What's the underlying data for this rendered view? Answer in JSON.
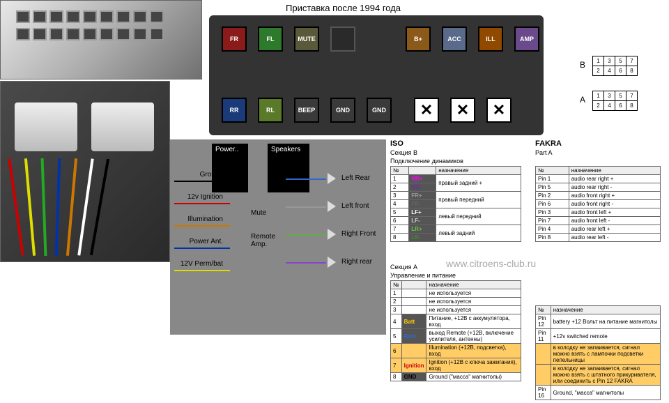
{
  "title_top": "Приставка после 1994 года",
  "photo_placeholders": {
    "top_left": "connector-photo-top",
    "bottom_left": "connector-photo-bottom"
  },
  "main_connector": {
    "background": "#3a3a3a",
    "top_row": [
      {
        "label": "FR",
        "bg": "#8b1a1a"
      },
      {
        "label": "FL",
        "bg": "#2d7a2d"
      },
      {
        "label": "MUTE",
        "bg": "#5a5a3a"
      },
      {
        "label": "",
        "bg": "#2a2a2a",
        "blank": true
      },
      {
        "label": "B+",
        "bg": "#8b5a1a"
      },
      {
        "label": "ACC",
        "bg": "#5a6a8a"
      },
      {
        "label": "ILL",
        "bg": "#904a00"
      },
      {
        "label": "AMP",
        "bg": "#6a4a8a"
      }
    ],
    "bottom_row": [
      {
        "label": "RR",
        "bg": "#1a3a7a"
      },
      {
        "label": "RL",
        "bg": "#5a7a2a"
      },
      {
        "label": "BEEP",
        "bg": "#3a3a3a"
      },
      {
        "label": "GND",
        "bg": "#3a3a3a"
      },
      {
        "label": "GND",
        "bg": "#3a3a3a"
      },
      {
        "label": "✕",
        "bg": "#ffffff",
        "x": true
      },
      {
        "label": "✕",
        "bg": "#ffffff",
        "x": true
      },
      {
        "label": "✕",
        "bg": "#ffffff",
        "x": true
      }
    ]
  },
  "mini_connectors": {
    "B": {
      "label": "B",
      "pins": [
        [
          "1",
          "3",
          "5",
          "7"
        ],
        [
          "2",
          "4",
          "6",
          "8"
        ]
      ]
    },
    "A": {
      "label": "A",
      "pins": [
        [
          "1",
          "3",
          "5",
          "7"
        ],
        [
          "2",
          "4",
          "6",
          "8"
        ]
      ]
    }
  },
  "wiring": {
    "power_label": "Power..",
    "speakers_label": "Speakers",
    "left_labels": [
      {
        "text": "Ground",
        "color": "#000000"
      },
      {
        "text": "12v Ignition",
        "color": "#cc0000"
      },
      {
        "text": "Illumination",
        "color": "#cc7700"
      },
      {
        "text": "Power Ant.",
        "color": "#0033aa"
      },
      {
        "text": "12V Perm/bat",
        "color": "#dddd00"
      }
    ],
    "mid_labels": [
      {
        "text": "Mute",
        "color": "#666666"
      },
      {
        "text": "Remote Amp.",
        "color": "#8844cc"
      }
    ],
    "speaker_labels": [
      "Left Rear",
      "Left front",
      "Right Front",
      "Right rear"
    ],
    "speaker_colors": [
      "#3366cc",
      "#999999",
      "#66aa44",
      "#8844cc"
    ]
  },
  "iso_B": {
    "header": "ISO",
    "section_label": "Секция B",
    "subtitle": "Подключение динамиков",
    "columns": [
      "№",
      "",
      "назначение"
    ],
    "rows": [
      [
        "1",
        "RR+",
        "правый задний +",
        "#ff00ff"
      ],
      [
        "2",
        "RR-",
        "",
        "#663399"
      ],
      [
        "3",
        "FR+",
        "правый передний",
        "#999999"
      ],
      [
        "4",
        "FR-",
        "",
        "#666666"
      ],
      [
        "5",
        "LF+",
        "левый передний",
        "#ffffff"
      ],
      [
        "6",
        "LF-",
        "",
        "#cccccc"
      ],
      [
        "7",
        "LR+",
        "левый задний",
        "#66cc44"
      ],
      [
        "8",
        "LR-",
        "",
        "#448833"
      ]
    ]
  },
  "fakra_A": {
    "header": "FAKRA",
    "section_label": "Part A",
    "columns": [
      "№",
      "назначение"
    ],
    "rows": [
      [
        "Pin 1",
        "audio rear right +"
      ],
      [
        "Pin 5",
        "audio rear right -"
      ],
      [
        "Pin 2",
        "audio front right +"
      ],
      [
        "Pin 6",
        "audio front right -"
      ],
      [
        "Pin 3",
        "audio front left +"
      ],
      [
        "Pin 7",
        "audio front left -"
      ],
      [
        "Pin 4",
        "audio rear left +"
      ],
      [
        "Pin 8",
        "audio rear left -"
      ]
    ]
  },
  "iso_A": {
    "section_label": "Секция A",
    "subtitle": "Управление и питание",
    "columns": [
      "№",
      "",
      "назначение"
    ],
    "rows": [
      [
        "1",
        "",
        "не используется",
        ""
      ],
      [
        "2",
        "",
        "не используется",
        ""
      ],
      [
        "3",
        "",
        "не используется",
        ""
      ],
      [
        "4",
        "Batt",
        "Питание, +12В с аккумулятора, вход",
        "#ffcc00",
        "Pin 12",
        "battery +12 Вольт на питание магнитолы"
      ],
      [
        "5",
        "Rem",
        "выход Remote (+12В, включение усилителя, антенны)",
        "#3366cc",
        "Pin 11",
        "+12v switched remote"
      ],
      [
        "6",
        "",
        "Illumination (+12В, подсветка), вход",
        "#cc7700",
        "",
        "в колодку не запаивается, сигнал можно взять с лампочки подсветки пепельницы",
        "highlight"
      ],
      [
        "7",
        "Ignition",
        "Ignition (+12В с ключа зажигания), вход",
        "#cc0000",
        "",
        "в колодку не запаивается, сигнал можно взять с штатного прикуривателя, или соединить с Pin 12 FAKRA",
        "highlight"
      ],
      [
        "8",
        "GND",
        "Ground (\"масса\" магнитолы)",
        "#000000",
        "Pin 16",
        "Ground, \"масса\" магнитолы"
      ]
    ]
  },
  "watermark": "www.citroens-club.ru"
}
